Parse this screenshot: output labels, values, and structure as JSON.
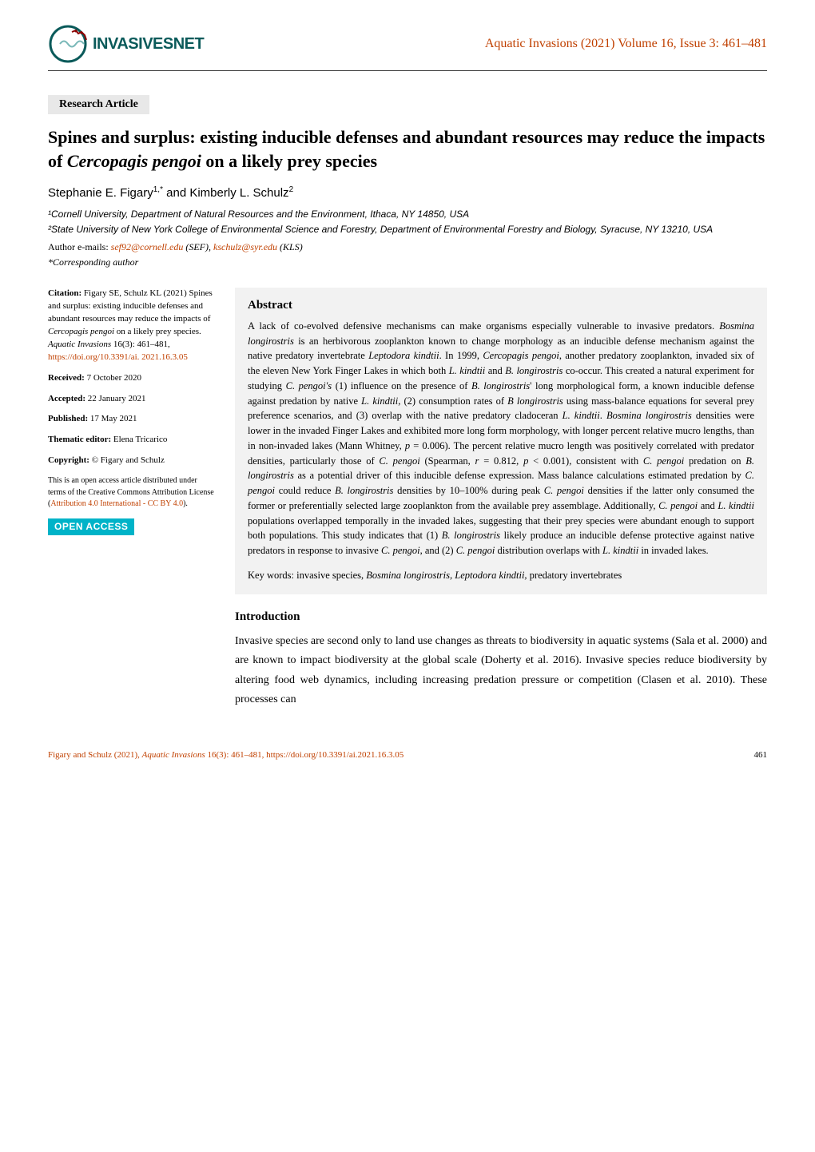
{
  "header": {
    "logo_text": "INVASIVESNET",
    "journal_citation": "Aquatic Invasions (2021) Volume 16, Issue 3: 461–481"
  },
  "article_type": "Research Article",
  "title": "Spines and surplus: existing inducible defenses and abundant resources may reduce the impacts of <span class=\"italic\">Cercopagis pengoi</span> on a likely prey species",
  "authors_html": "Stephanie E. Figary<sup>1,*</sup> and Kimberly L. Schulz<sup>2</sup>",
  "affiliations": [
    "¹Cornell University, Department of Natural Resources and the Environment, Ithaca, NY 14850, USA",
    "²State University of New York College of Environmental Science and Forestry, Department of Environmental Forestry and Biology, Syracuse, NY 13210, USA"
  ],
  "emails_label": "Author e-mails: ",
  "emails_html": "<span class=\"email-link\">sef92@cornell.edu</span> <span class=\"italic\">(SEF)</span>, <span class=\"email-link\">kschulz@syr.edu</span> <span class=\"italic\">(KLS)</span>",
  "corresponding": "*Corresponding author",
  "sidebar": {
    "citation_html": "<span class=\"bold\">Citation:</span> Figary SE, Schulz KL (2021) Spines and surplus: existing inducible defenses and abundant resources may reduce the impacts of <span class=\"italic\">Cercopagis pengoi</span> on a likely prey species. <span class=\"italic\">Aquatic Invasions</span> 16(3): 461–481, <span class=\"link\">https://doi.org/10.3391/ai. 2021.16.3.05</span>",
    "received_html": "<span class=\"bold\">Received:</span> 7 October 2020",
    "accepted_html": "<span class=\"bold\">Accepted:</span> 22 January 2021",
    "published_html": "<span class=\"bold\">Published:</span> 17 May 2021",
    "editor_html": "<span class=\"bold\">Thematic editor:</span> Elena Tricarico",
    "copyright_html": "<span class=\"bold\">Copyright:</span> © Figary and Schulz",
    "license_html": "This is an open access article distributed under terms of the Creative Commons Attribution License (<span class=\"link\">Attribution 4.0 International - CC BY 4.0</span>).",
    "open_access_label": "OPEN ACCESS"
  },
  "abstract": {
    "heading": "Abstract",
    "text_html": "A lack of co-evolved defensive mechanisms can make organisms especially vulnerable to invasive predators. <span class=\"italic\">Bosmina longirostris</span> is an herbivorous zooplankton known to change morphology as an inducible defense mechanism against the native predatory invertebrate <span class=\"italic\">Leptodora kindtii</span>. In 1999, <span class=\"italic\">Cercopagis pengoi</span>, another predatory zooplankton, invaded six of the eleven New York Finger Lakes in which both <span class=\"italic\">L. kindtii</span> and <span class=\"italic\">B. longirostris</span> co-occur. This created a natural experiment for studying <span class=\"italic\">C. pengoi's</span> (1) influence on the presence of <span class=\"italic\">B. longirostris</span>' long morphological form, a known inducible defense against predation by native <span class=\"italic\">L. kindtii</span>, (2) consumption rates of <span class=\"italic\">B longirostris</span> using mass-balance equations for several prey preference scenarios, and (3) overlap with the native predatory cladoceran <span class=\"italic\">L. kindtii</span>. <span class=\"italic\">Bosmina longirostris</span> densities were lower in the invaded Finger Lakes and exhibited more long form morphology, with longer percent relative mucro lengths, than in non-invaded lakes (Mann Whitney, <span class=\"italic\">p</span> = 0.006). The percent relative mucro length was positively correlated with predator densities, particularly those of <span class=\"italic\">C. pengoi</span> (Spearman, <span class=\"italic\">r</span> = 0.812, <span class=\"italic\">p</span> &lt; 0.001), consistent with <span class=\"italic\">C. pengoi</span> predation on <span class=\"italic\">B. longirostris</span> as a potential driver of this inducible defense expression. Mass balance calculations estimated predation by <span class=\"italic\">C. pengoi</span> could reduce <span class=\"italic\">B. longirostris</span> densities by 10–100% during peak <span class=\"italic\">C. pengoi</span> densities if the latter only consumed the former or preferentially selected large zooplankton from the available prey assemblage. Additionally, <span class=\"italic\">C. pengoi</span> and <span class=\"italic\">L. kindtii</span> populations overlapped temporally in the invaded lakes, suggesting that their prey species were abundant enough to support both populations. This study indicates that (1) <span class=\"italic\">B. longirostris</span> likely produce an inducible defense protective against native predators in response to invasive <span class=\"italic\">C. pengoi</span>, and (2) <span class=\"italic\">C. pengoi</span> distribution overlaps with <span class=\"italic\">L. kindtii</span> in invaded lakes.",
    "keywords_html": "<span class=\"bold\">Key words:</span> invasive species, <span class=\"italic\">Bosmina longirostris, Leptodora kindtii,</span> predatory invertebrates"
  },
  "introduction": {
    "heading": "Introduction",
    "text": "Invasive species are second only to land use changes as threats to biodiversity in aquatic systems (Sala et al. 2000) and are known to impact biodiversity at the global scale (Doherty et al. 2016). Invasive species reduce biodiversity by altering food web dynamics, including increasing predation pressure or competition (Clasen et al. 2010). These processes can"
  },
  "footer": {
    "left_html": "Figary and Schulz (2021), <span class=\"italic\">Aquatic Invasions</span> 16(3): 461–481, https://doi.org/10.3391/ai.2021.16.3.05",
    "page_number": "461"
  },
  "colors": {
    "accent_orange": "#c04000",
    "logo_teal": "#0a5a5a",
    "open_access_bg": "#00b3c8",
    "abstract_bg": "#f2f2f2",
    "badge_bg": "#e8e8e8"
  }
}
